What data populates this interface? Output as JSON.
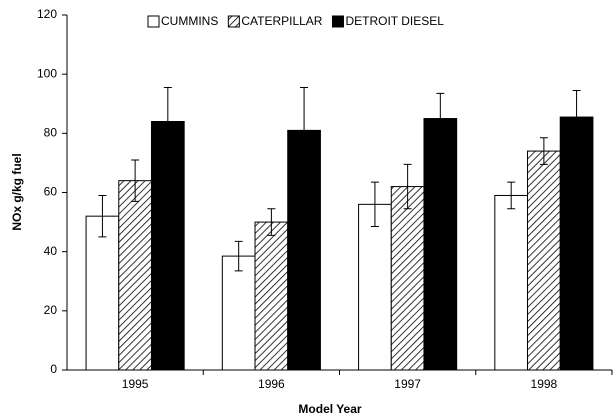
{
  "chart_data": {
    "type": "bar",
    "x_label": "Model Year",
    "y_label": "NOx g/kg fuel",
    "categories": [
      "1995",
      "1996",
      "1997",
      "1998"
    ],
    "series": [
      {
        "name": "CUMMINS",
        "color": "#ffffff",
        "pattern": "solid",
        "values": [
          52,
          38.5,
          56,
          59
        ],
        "errors": [
          7,
          5,
          7.5,
          4.5
        ]
      },
      {
        "name": "CATERPILLAR",
        "color": "#ffffff",
        "pattern": "hatch",
        "values": [
          64,
          50,
          62,
          74
        ],
        "errors": [
          7,
          4.5,
          7.5,
          4.5
        ]
      },
      {
        "name": "DETROIT DIESEL",
        "color": "#000000",
        "pattern": "solid",
        "values": [
          84,
          81,
          85,
          85.5
        ],
        "errors": [
          11.5,
          14.5,
          8.5,
          9
        ]
      }
    ],
    "ylim": [
      0,
      120
    ],
    "yticks": [
      0,
      20,
      40,
      60,
      80,
      100,
      120
    ],
    "grid": false,
    "legend": "top"
  }
}
